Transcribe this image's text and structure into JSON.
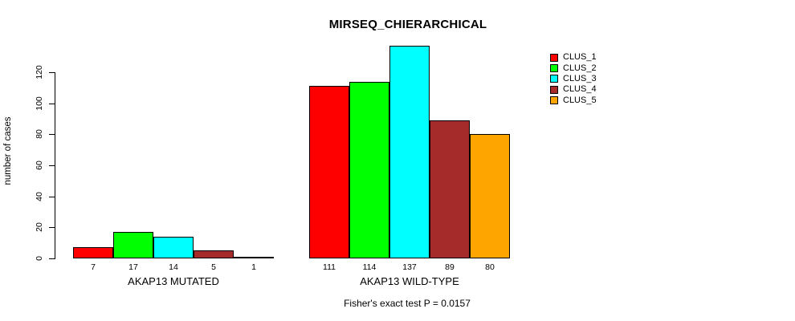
{
  "chart_data": {
    "type": "bar",
    "title": "MIRSEQ_CHIERARCHICAL",
    "ylabel": "number of cases",
    "xlabel": "",
    "ylim": [
      0,
      140
    ],
    "yticks": [
      0,
      20,
      40,
      60,
      80,
      100,
      120
    ],
    "grid": false,
    "legend_position": "right-outside",
    "categories": [
      "AKAP13 MUTATED",
      "AKAP13 WILD-TYPE"
    ],
    "series": [
      {
        "name": "CLUS_1",
        "color": "#ff0000",
        "values": [
          7,
          111
        ]
      },
      {
        "name": "CLUS_2",
        "color": "#00ff00",
        "values": [
          17,
          114
        ]
      },
      {
        "name": "CLUS_3",
        "color": "#00ffff",
        "values": [
          14,
          137
        ]
      },
      {
        "name": "CLUS_4",
        "color": "#a52a2a",
        "values": [
          5,
          89
        ]
      },
      {
        "name": "CLUS_5",
        "color": "#ffa500",
        "values": [
          1,
          80
        ]
      }
    ],
    "bar_value_labels_shown": true,
    "annotation": "Fisher's exact test P = 0.0157"
  }
}
